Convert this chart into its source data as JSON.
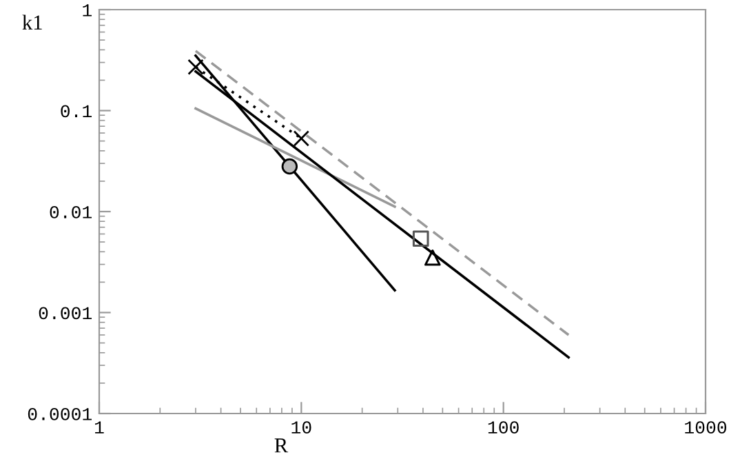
{
  "chart_data": {
    "type": "line",
    "xlabel": "R",
    "ylabel": "k1",
    "log": "xy",
    "grid": false,
    "xlim": [
      1,
      1000
    ],
    "ylim": [
      0.0001,
      1
    ],
    "xticks": [
      1,
      10,
      100,
      1000
    ],
    "yticks": [
      0.0001,
      0.001,
      0.01,
      0.1,
      1
    ],
    "series": [
      {
        "color": "#000000",
        "x": [
          3,
          29
        ],
        "values": [
          0.35,
          0.00166
        ],
        "line_style": "solid"
      },
      {
        "color": "#999999",
        "x": [
          3,
          29
        ],
        "values": [
          0.105,
          0.0112
        ],
        "line_style": "solid"
      },
      {
        "color": "#000000",
        "x": [
          3,
          210
        ],
        "values": [
          0.244,
          0.00036
        ],
        "line_style": "solid"
      },
      {
        "color": "#999999",
        "x": [
          3,
          210
        ],
        "values": [
          0.39,
          0.0006
        ],
        "line_style": "dashed"
      },
      {
        "color": "#000000",
        "x": [
          3,
          10
        ],
        "values": [
          0.27,
          0.053
        ],
        "line_style": "dotted"
      },
      {
        "type": "scatter",
        "color": "#000000",
        "x": [
          3,
          10
        ],
        "values": [
          0.27,
          0.053
        ],
        "marker": "cross"
      },
      {
        "type": "scatter",
        "color": "#bbbbbb",
        "x": [
          8.75
        ],
        "values": [
          0.028
        ],
        "marker": "circle"
      },
      {
        "type": "scatter",
        "color": "#555555",
        "x": [
          39
        ],
        "values": [
          0.0054
        ],
        "marker": "square"
      },
      {
        "type": "scatter",
        "color": "#000000",
        "x": [
          44.6
        ],
        "values": [
          0.0035
        ],
        "marker": "triangle"
      }
    ]
  }
}
